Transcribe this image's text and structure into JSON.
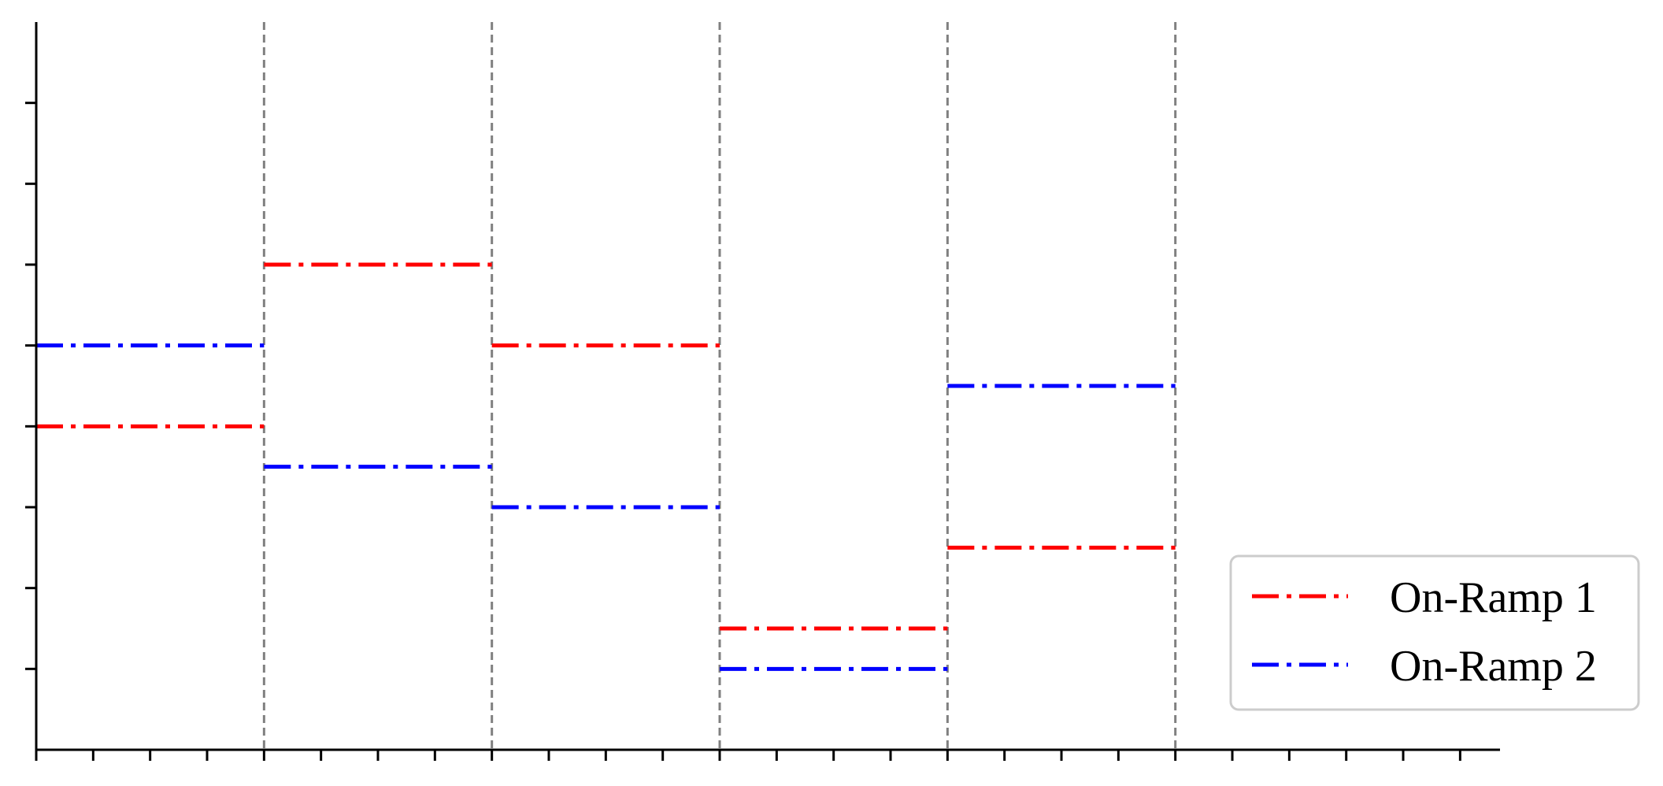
{
  "chart_data": {
    "type": "line",
    "title": "",
    "xlabel": "",
    "ylabel": "",
    "xlim": [
      0,
      25.7
    ],
    "ylim": [
      0,
      9
    ],
    "x_major_ticks": [
      0,
      1,
      2,
      3,
      4,
      5,
      6,
      7,
      8,
      9,
      10,
      11,
      12,
      13,
      14,
      15,
      16,
      17,
      18,
      19,
      20,
      21,
      22,
      23,
      24,
      25
    ],
    "y_major_ticks": [
      0,
      1,
      2,
      3,
      4,
      5,
      6,
      7,
      8
    ],
    "tick_labels_shown": false,
    "vertical_reference_lines": [
      4,
      8,
      12,
      16,
      20
    ],
    "grid": false,
    "legend_position": "lower-right",
    "series": [
      {
        "name": "On-Ramp 1",
        "color": "#ff0000",
        "linestyle": "dashdot",
        "segments": [
          {
            "x": [
              0,
              4
            ],
            "y": 4
          },
          {
            "x": [
              4,
              8
            ],
            "y": 6
          },
          {
            "x": [
              8,
              12
            ],
            "y": 5
          },
          {
            "x": [
              12,
              16
            ],
            "y": 1.5
          },
          {
            "x": [
              16,
              20
            ],
            "y": 2.5
          }
        ]
      },
      {
        "name": "On-Ramp 2",
        "color": "#0000ff",
        "linestyle": "dashdot",
        "segments": [
          {
            "x": [
              0,
              4
            ],
            "y": 5
          },
          {
            "x": [
              4,
              8
            ],
            "y": 3.5
          },
          {
            "x": [
              8,
              12
            ],
            "y": 3
          },
          {
            "x": [
              12,
              16
            ],
            "y": 1
          },
          {
            "x": [
              16,
              20
            ],
            "y": 4.5
          }
        ]
      }
    ]
  },
  "colors": {
    "reference_line": "#808080",
    "axis": "#000000",
    "legend_border": "#cccccc"
  }
}
